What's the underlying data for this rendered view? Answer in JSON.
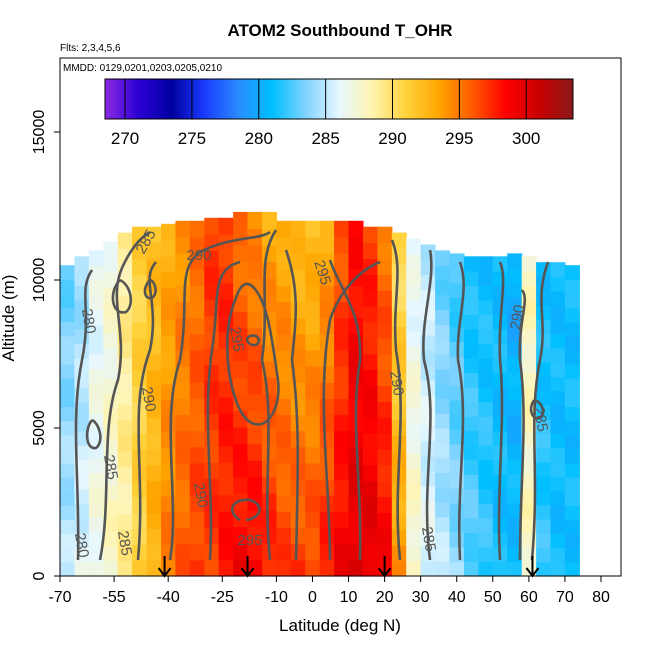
{
  "colors": {
    "ramp": [
      "#8b2be2",
      "#2b00d4",
      "#0000a0",
      "#1a3cff",
      "#2a8cff",
      "#00bfff",
      "#7fd3ff",
      "#e6f7ff",
      "#fff4b0",
      "#ffd23a",
      "#ffa500",
      "#ff5a00",
      "#ff0000",
      "#c80000",
      "#8b1a1a"
    ],
    "contour": "#555555",
    "frame": "#000000"
  },
  "chart_data": {
    "type": "heatmap",
    "title": "ATOM2 Southbound T_OHR",
    "subtitle_flights": "Flts: 2,3,4,5,6",
    "subtitle_dates": "MMDD: 0129,0201,0203,0205,0210",
    "xlabel": "Latitude (deg N)",
    "ylabel": "Altitude (m)",
    "xlim": [
      -70,
      82
    ],
    "ylim": [
      0,
      17500
    ],
    "x_ticks": [
      -70,
      -55,
      -40,
      -25,
      -10,
      0,
      10,
      20,
      30,
      40,
      50,
      60,
      70,
      80
    ],
    "x_tick_labels": [
      "-70",
      "-55",
      "-40",
      "-25",
      "-10",
      "0",
      "10",
      "20",
      "30",
      "40",
      "50",
      "60",
      "70",
      "80"
    ],
    "y_ticks": [
      0,
      5000,
      10000,
      15000
    ],
    "y_tick_labels": [
      "0",
      "5000",
      "10000",
      "15000"
    ],
    "colorbar": {
      "range": [
        268.5,
        303.5
      ],
      "ticks": [
        270,
        275,
        280,
        285,
        290,
        295,
        300
      ],
      "tick_labels": [
        "270",
        "275",
        "280",
        "285",
        "290",
        "295",
        "300"
      ]
    },
    "x": [
      -68,
      -64,
      -60,
      -56,
      -52,
      -48,
      -44,
      -40,
      -36,
      -32,
      -28,
      -24,
      -20,
      -16,
      -12,
      -8,
      -4,
      0,
      4,
      8,
      12,
      16,
      20,
      24,
      28,
      32,
      36,
      40,
      44,
      48,
      52,
      56,
      60,
      64,
      68,
      72
    ],
    "column_tops": [
      10500,
      10800,
      11000,
      11300,
      11600,
      11800,
      11800,
      11900,
      12000,
      12000,
      12100,
      12100,
      12300,
      12300,
      12300,
      12000,
      12000,
      12000,
      12000,
      12000,
      12000,
      11800,
      11800,
      11600,
      11400,
      11200,
      11000,
      10900,
      10800,
      10800,
      10800,
      10900,
      10800,
      10600,
      10600,
      10500
    ],
    "column_temps_surface": [
      285,
      286,
      287,
      288,
      289,
      291,
      293,
      295,
      296,
      297,
      297,
      298,
      299,
      299,
      298,
      297,
      297,
      297,
      298,
      299,
      300,
      300,
      299,
      294,
      288,
      286,
      285,
      284,
      283,
      282,
      281,
      281,
      288,
      282,
      281,
      281
    ],
    "column_temps_top": [
      283,
      284,
      286,
      287,
      289,
      291,
      292,
      293,
      294,
      295,
      297,
      297,
      295,
      294,
      293,
      293,
      292,
      292,
      293,
      296,
      298,
      297,
      295,
      290,
      286,
      285,
      283,
      282,
      281,
      281,
      281,
      280,
      288,
      281,
      281,
      281
    ],
    "contour_levels": [
      "280",
      "285",
      "290",
      "295"
    ],
    "contour_label_texts": [
      "285",
      "290",
      "295",
      "280",
      "295",
      "290",
      "285",
      "285",
      "290",
      "280",
      "290",
      "295",
      "290",
      "285",
      "285"
    ],
    "sonde_markers_lat": [
      -41,
      -18,
      20,
      61
    ]
  }
}
